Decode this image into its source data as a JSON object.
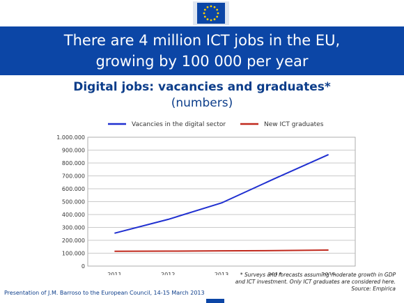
{
  "header": {
    "headline_line1": "There are 4 million ICT jobs in the EU,",
    "headline_line2": "growing by 100 000 per year",
    "accent_color": "#0c46a6",
    "logo_icon": "eu-flag-icon"
  },
  "chart_data": {
    "type": "line",
    "title": "Digital jobs: vacancies and graduates*",
    "subtitle": "(numbers)",
    "x": [
      "2011",
      "2012",
      "2013",
      "2014",
      "2015"
    ],
    "series": [
      {
        "name": "Vacancies in the digital sector",
        "color": "#1f2fd0",
        "values": [
          255000,
          362000,
          490000,
          680000,
          865000
        ]
      },
      {
        "name": "New ICT graduates",
        "color": "#c0281c",
        "values": [
          115000,
          116000,
          118000,
          120000,
          124000
        ]
      }
    ],
    "yticks": [
      "0",
      "100.000",
      "200.000",
      "300.000",
      "400.000",
      "500.000",
      "600.000",
      "700.000",
      "800.000",
      "900.000",
      "1.000.000"
    ],
    "ylim": [
      0,
      1000000
    ],
    "grid": true,
    "legend_position": "top"
  },
  "footnote": {
    "line1": "* Surveys and forecasts assuming moderate growth in GDP",
    "line2": "and ICT investment. Only ICT graduates are considered here.",
    "line3": "Source: Empirica"
  },
  "footer": {
    "text": "Presentation of J.M. Barroso to the European Council, 14-15 March 2013"
  }
}
